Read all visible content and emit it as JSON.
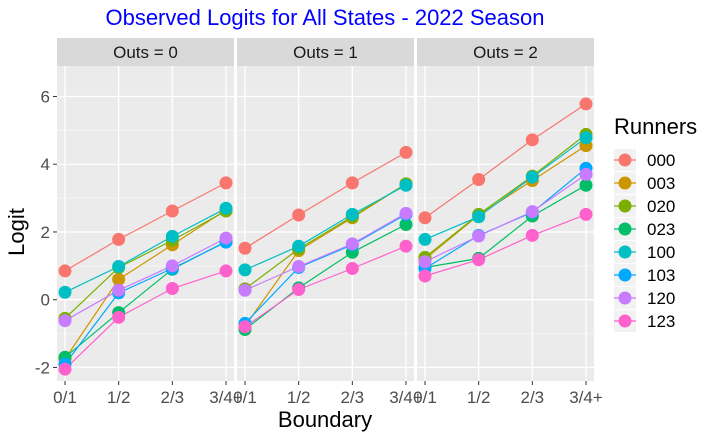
{
  "chart_data": {
    "type": "line",
    "title": "Observed Logits for All States - 2022 Season",
    "xlabel": "Boundary",
    "ylabel": "Logit",
    "categories": [
      "0/1",
      "1/2",
      "2/3",
      "3/4+"
    ],
    "ylim": [
      -2.4,
      6.9
    ],
    "yticks": [
      -2,
      0,
      2,
      4,
      6
    ],
    "grid": true,
    "legend": {
      "title": "Runners",
      "placement": "right"
    },
    "title_color": "#0000FF",
    "facets": [
      {
        "label": "Outs =  0",
        "series": [
          {
            "name": "000",
            "color": "#F8766D",
            "values": [
              0.85,
              1.78,
              2.62,
              3.45
            ]
          },
          {
            "name": "003",
            "color": "#CD9600",
            "values": [
              -1.75,
              0.6,
              1.62,
              2.65
            ]
          },
          {
            "name": "020",
            "color": "#7CAE00",
            "values": [
              -0.55,
              0.95,
              1.75,
              2.62
            ]
          },
          {
            "name": "023",
            "color": "#00BE67",
            "values": [
              -1.7,
              -0.38,
              0.9,
              1.72
            ]
          },
          {
            "name": "100",
            "color": "#00BFC4",
            "values": [
              0.22,
              0.98,
              1.87,
              2.7
            ]
          },
          {
            "name": "103",
            "color": "#00A9FF",
            "values": [
              -1.9,
              0.2,
              0.92,
              1.7
            ]
          },
          {
            "name": "120",
            "color": "#C77CFF",
            "values": [
              -0.62,
              0.28,
              1.0,
              1.82
            ]
          },
          {
            "name": "123",
            "color": "#FF61CC",
            "values": [
              -2.05,
              -0.52,
              0.33,
              0.85
            ]
          }
        ]
      },
      {
        "label": "Outs =  1",
        "series": [
          {
            "name": "000",
            "color": "#F8766D",
            "values": [
              1.52,
              2.5,
              3.45,
              4.35
            ]
          },
          {
            "name": "003",
            "color": "#CD9600",
            "values": [
              -0.78,
              1.45,
              2.42,
              3.42
            ]
          },
          {
            "name": "020",
            "color": "#7CAE00",
            "values": [
              0.32,
              1.5,
              2.45,
              3.42
            ]
          },
          {
            "name": "023",
            "color": "#00BE67",
            "values": [
              -0.88,
              0.35,
              1.4,
              2.22
            ]
          },
          {
            "name": "100",
            "color": "#00BFC4",
            "values": [
              0.88,
              1.58,
              2.52,
              3.38
            ]
          },
          {
            "name": "103",
            "color": "#00A9FF",
            "values": [
              -0.7,
              0.95,
              1.62,
              2.52
            ]
          },
          {
            "name": "120",
            "color": "#C77CFF",
            "values": [
              0.28,
              0.98,
              1.65,
              2.55
            ]
          },
          {
            "name": "123",
            "color": "#FF61CC",
            "values": [
              -0.8,
              0.3,
              0.92,
              1.58
            ]
          }
        ]
      },
      {
        "label": "Outs =  2",
        "series": [
          {
            "name": "000",
            "color": "#F8766D",
            "values": [
              2.42,
              3.55,
              4.72,
              5.78
            ]
          },
          {
            "name": "003",
            "color": "#CD9600",
            "values": [
              1.2,
              2.5,
              3.52,
              4.55
            ]
          },
          {
            "name": "020",
            "color": "#7CAE00",
            "values": [
              1.25,
              2.52,
              3.65,
              4.88
            ]
          },
          {
            "name": "023",
            "color": "#00BE67",
            "values": [
              0.95,
              1.22,
              2.47,
              3.38
            ]
          },
          {
            "name": "100",
            "color": "#00BFC4",
            "values": [
              1.78,
              2.45,
              3.62,
              4.78
            ]
          },
          {
            "name": "103",
            "color": "#00A9FF",
            "values": [
              0.92,
              1.9,
              2.58,
              3.88
            ]
          },
          {
            "name": "120",
            "color": "#C77CFF",
            "values": [
              1.12,
              1.88,
              2.6,
              3.7
            ]
          },
          {
            "name": "123",
            "color": "#FF61CC",
            "values": [
              0.7,
              1.18,
              1.9,
              2.52
            ]
          }
        ]
      }
    ]
  }
}
